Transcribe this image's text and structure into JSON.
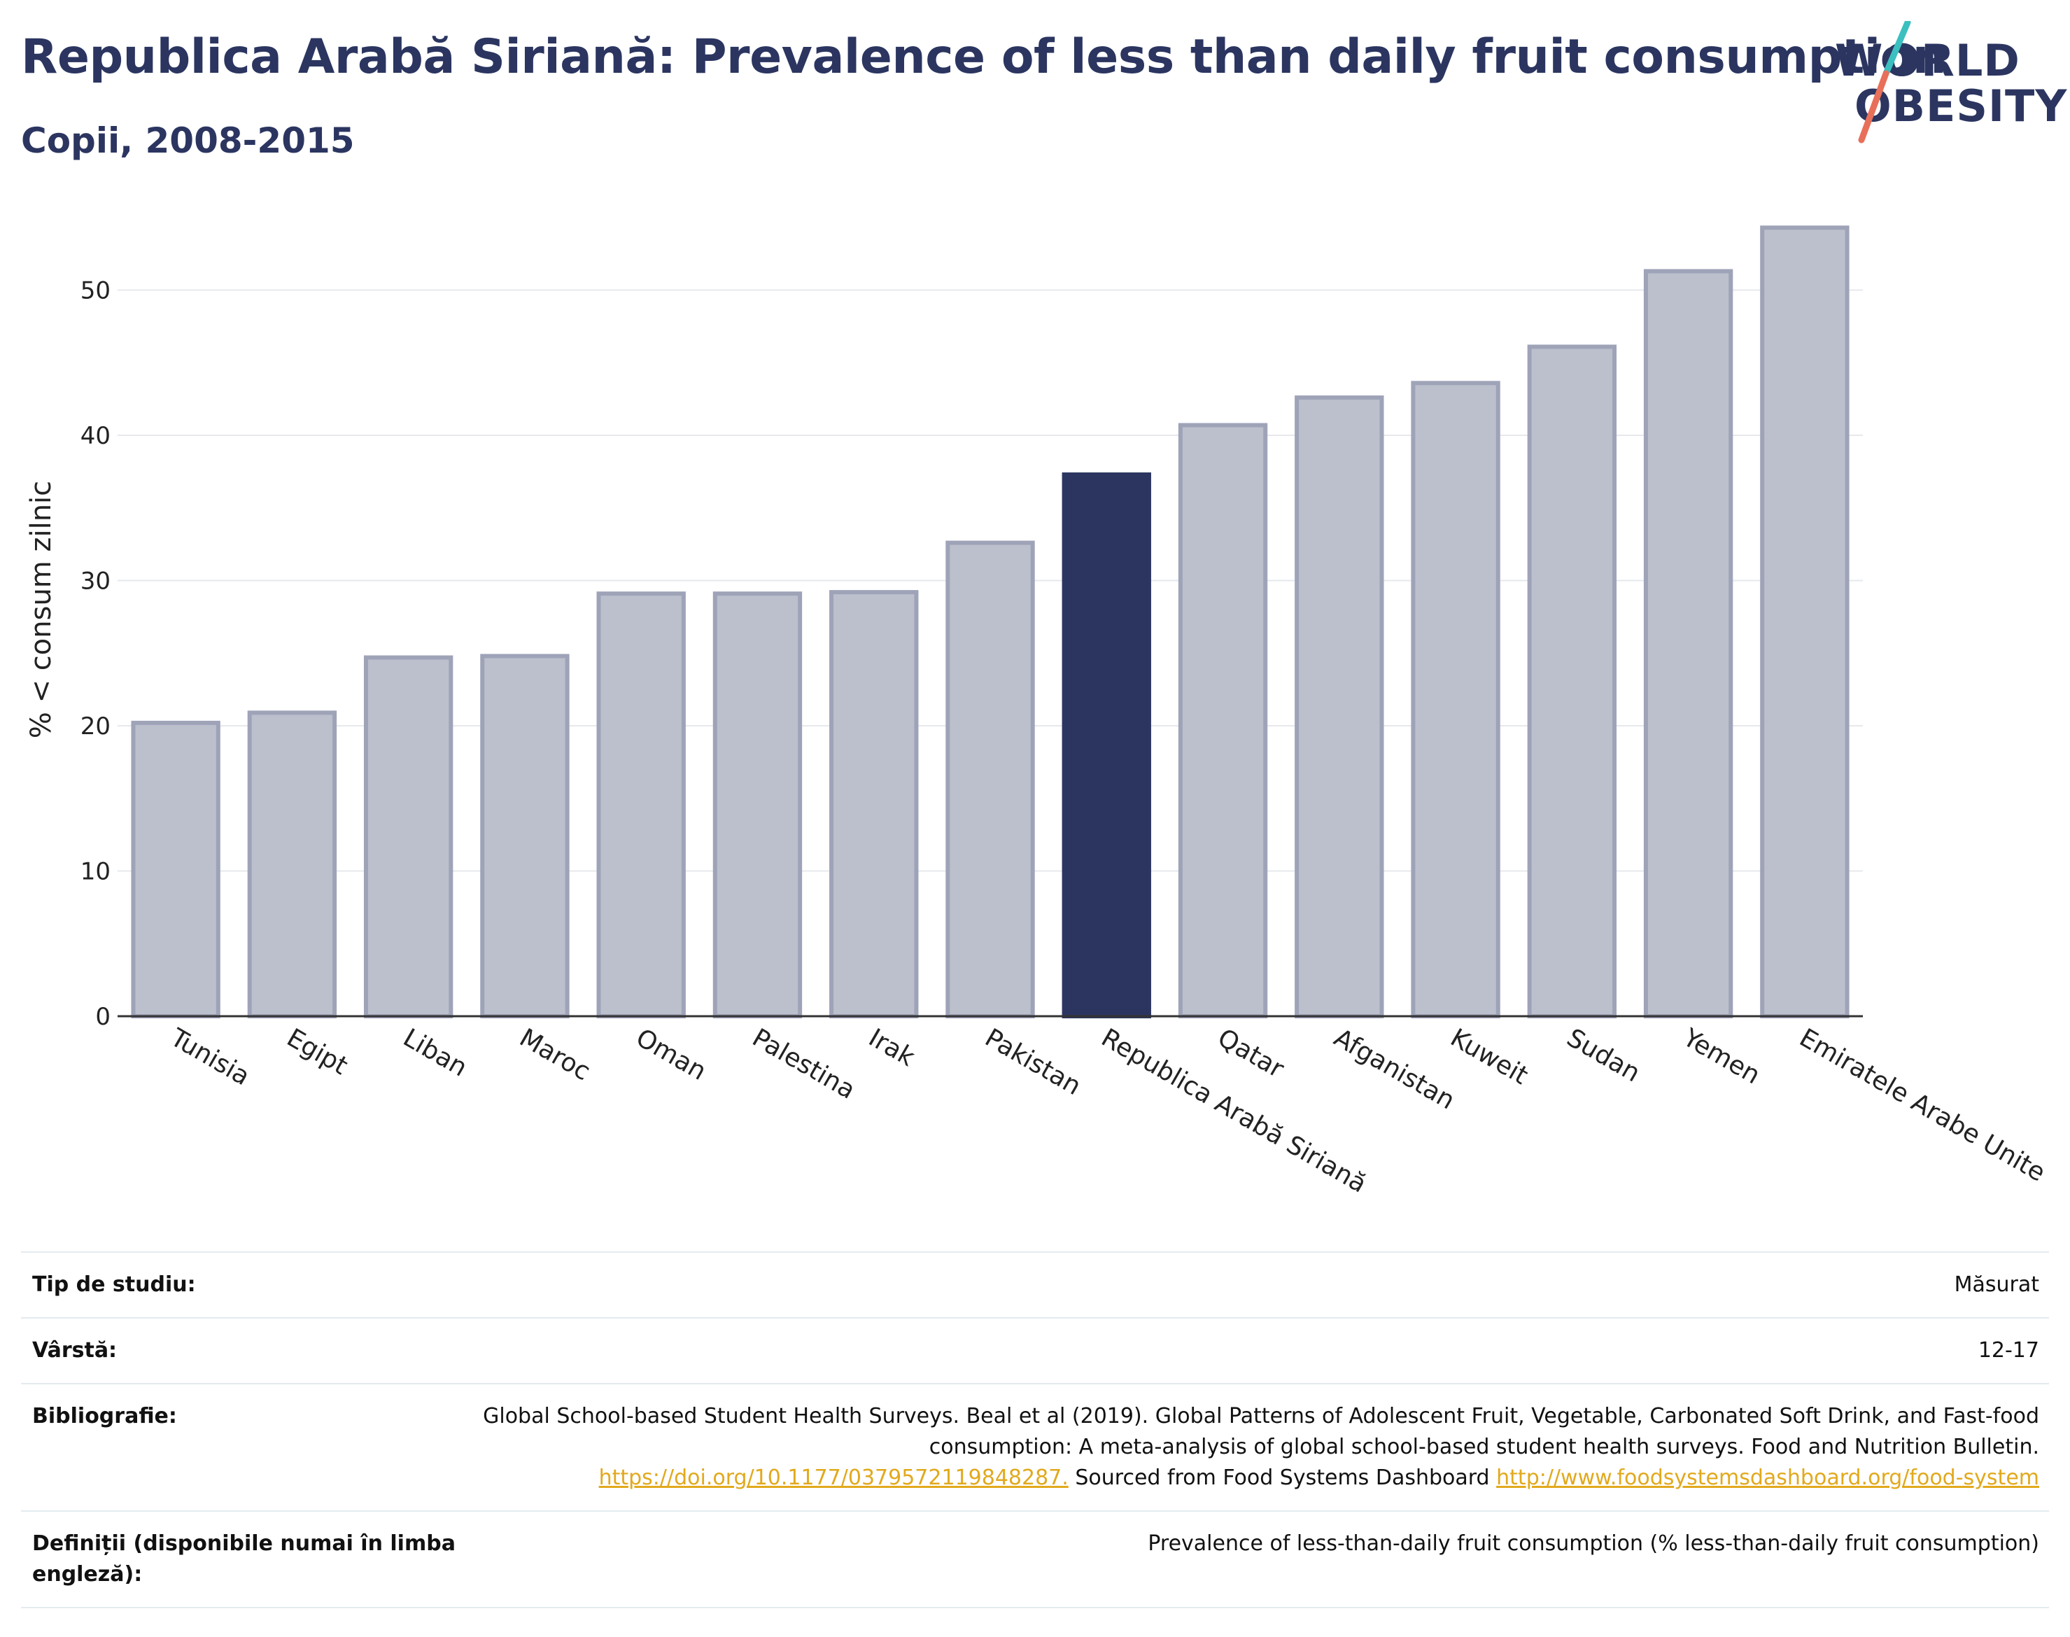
{
  "header": {
    "title": "Republica Arabă Siriană: Prevalence of less than daily fruit consumption",
    "subtitle": "Copii, 2008-2015"
  },
  "logo": {
    "line1": "WORLD",
    "line2": "OBESITY",
    "colors": {
      "text": "#2b3560",
      "slash_top": "#3bbfbf",
      "slash_bottom": "#e8705a"
    }
  },
  "chart_data": {
    "type": "bar",
    "categories": [
      "Tunisia",
      "Egipt",
      "Liban",
      "Maroc",
      "Oman",
      "Palestina",
      "Irak",
      "Pakistan",
      "Republica Arabă Siriană",
      "Qatar",
      "Afganistan",
      "Kuweit",
      "Sudan",
      "Yemen",
      "Emiratele Arabe Unite"
    ],
    "values": [
      20.2,
      20.9,
      24.7,
      24.8,
      29.1,
      29.1,
      29.2,
      32.6,
      37.3,
      40.7,
      42.6,
      43.6,
      46.1,
      51.3,
      54.3
    ],
    "highlight": "Republica Arabă Siriană",
    "ylabel": "% < consum zilnic",
    "xlabel": "",
    "ylim": [
      0,
      56
    ],
    "yticks": [
      0,
      10,
      20,
      30,
      40,
      50
    ],
    "grid": true,
    "colors": {
      "bar": "#bcc0cd",
      "bar_border": "#9ea3b8",
      "highlight": "#2b3560",
      "grid": "#e6e8ec",
      "axis": "#333333"
    }
  },
  "meta": {
    "rows": [
      {
        "label": "Tip de studiu:",
        "value": "Măsurat"
      },
      {
        "label": "Vârstă:",
        "value": "12-17"
      },
      {
        "label": "Bibliografie:",
        "text1": "Global School-based Student Health Surveys. Beal et al (2019). Global Patterns of Adolescent Fruit, Vegetable, Carbonated Soft Drink, and Fast-food consumption: A meta-analysis of global school-based student health surveys. Food and Nutrition Bulletin.",
        "link1": "https://doi.org/10.1177/0379572119848287.",
        "text2": "Sourced from Food Systems Dashboard",
        "link2": "http://www.foodsystemsdashboard.org/food-system"
      },
      {
        "label": "Definiții (disponibile numai în limba engleză):",
        "value": "Prevalence of less-than-daily fruit consumption (% less-than-daily fruit consumption)"
      }
    ]
  }
}
